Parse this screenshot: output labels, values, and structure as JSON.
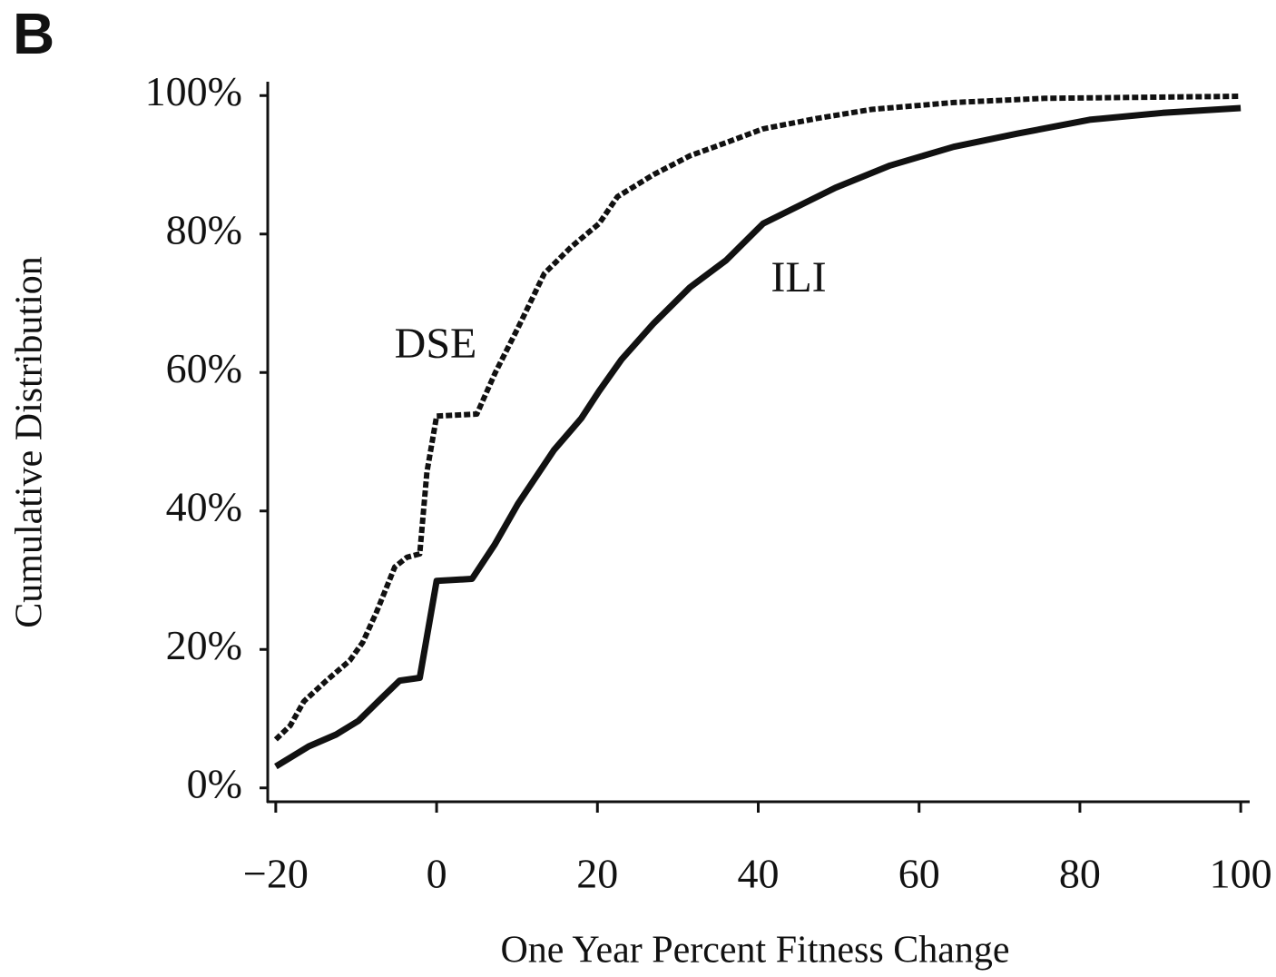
{
  "chart_data": {
    "type": "line",
    "panel_label": "B",
    "x_label": "One Year Percent Fitness Change",
    "y_label": "Cumulative Distribution",
    "xlim": [
      -21,
      101
    ],
    "ylim": [
      -2,
      102
    ],
    "xticks": [
      {
        "value": -20,
        "label": "−20"
      },
      0,
      20,
      40,
      60,
      80,
      100
    ],
    "yticks": [
      {
        "value": 0,
        "label": "0%"
      },
      {
        "value": 20,
        "label": "20%"
      },
      {
        "value": 40,
        "label": "40%"
      },
      {
        "value": 60,
        "label": "60%"
      },
      {
        "value": 80,
        "label": "80%"
      },
      {
        "value": 100,
        "label": "100%"
      }
    ],
    "grid": false,
    "series": [
      {
        "name": "DSE",
        "color": "#111111",
        "line_style": "dashed",
        "x": [
          -20,
          -18.2,
          -16.5,
          -13.7,
          -10.8,
          -9.2,
          -7.5,
          -5.2,
          -3.7,
          -2.1,
          -1.2,
          0,
          5,
          7.3,
          10.1,
          13.4,
          16.8,
          20.2,
          22.5,
          27,
          31.5,
          36,
          40.6,
          47.3,
          54.1,
          64.3,
          75.6,
          100
        ],
        "values": [
          7,
          9,
          12.5,
          15.5,
          18.4,
          21,
          25.3,
          31.9,
          33.3,
          33.8,
          45.6,
          53.7,
          54,
          60,
          66.4,
          74.3,
          78.2,
          81.5,
          85.4,
          88.6,
          91.3,
          93.2,
          95.2,
          96.7,
          98,
          99,
          99.6,
          99.9
        ]
      },
      {
        "name": "ILI",
        "color": "#111111",
        "line_style": "solid",
        "x": [
          -20,
          -15.9,
          -12.5,
          -9.7,
          -6.9,
          -4.6,
          -2.1,
          0,
          4.4,
          7.2,
          10.1,
          14.6,
          18,
          20.2,
          23,
          27,
          31.5,
          36,
          40.6,
          45.1,
          49.6,
          56.4,
          64.3,
          72.2,
          81.2,
          90.3,
          100
        ],
        "values": [
          3.1,
          6,
          7.7,
          9.7,
          12.9,
          15.5,
          15.9,
          29.9,
          30.2,
          35.1,
          41,
          48.8,
          53.4,
          57.3,
          61.9,
          67.1,
          72.3,
          76.2,
          81.5,
          84.1,
          86.7,
          89.9,
          92.6,
          94.5,
          96.5,
          97.5,
          98.2
        ]
      }
    ]
  }
}
